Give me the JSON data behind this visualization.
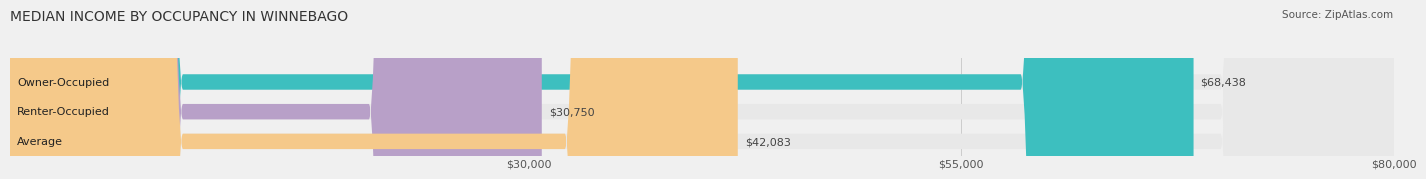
{
  "title": "MEDIAN INCOME BY OCCUPANCY IN WINNEBAGO",
  "source": "Source: ZipAtlas.com",
  "categories": [
    "Owner-Occupied",
    "Renter-Occupied",
    "Average"
  ],
  "values": [
    68438,
    30750,
    42083
  ],
  "bar_colors": [
    "#3dbfbf",
    "#b8a0c8",
    "#f5c98a"
  ],
  "bar_track_color": "#e8e8e8",
  "value_labels": [
    "$68,438",
    "$30,750",
    "$42,083"
  ],
  "xlim": [
    0,
    80000
  ],
  "xticks": [
    30000,
    55000,
    80000
  ],
  "xtick_labels": [
    "$30,000",
    "$55,000",
    "$80,000"
  ],
  "title_fontsize": 10,
  "source_fontsize": 7.5,
  "label_fontsize": 8,
  "bar_height": 0.52,
  "background_color": "#f0f0f0",
  "bar_label_color": "#444444",
  "category_label_color": "#222222"
}
